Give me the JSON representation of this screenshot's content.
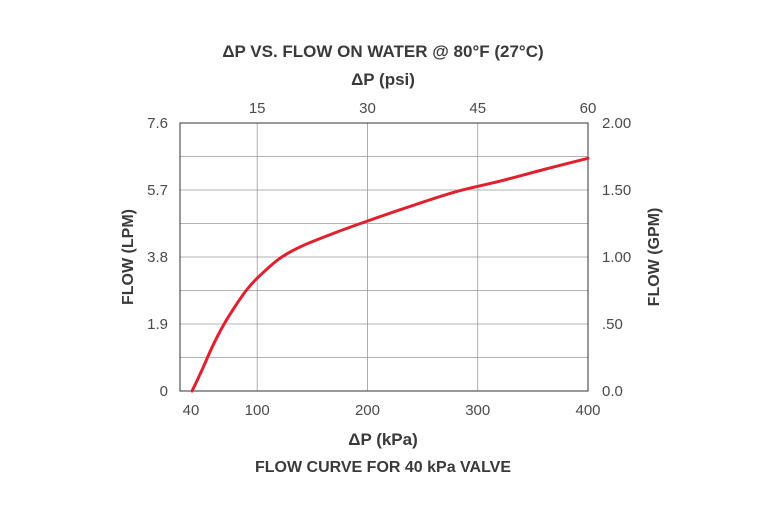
{
  "chart_data": {
    "type": "line",
    "title": "ΔP VS. FLOW ON WATER @ 80°F (27°C)",
    "top_xlabel": "ΔP (psi)",
    "xlabel": "ΔP (kPa)",
    "caption": "FLOW CURVE FOR 40 kPa VALVE",
    "ylabel_left": "FLOW (LPM)",
    "ylabel_right": "FLOW (GPM)",
    "xlim": [
      30,
      400
    ],
    "ylim": [
      0,
      7.6
    ],
    "x_ticks": [
      "40",
      "100",
      "200",
      "300",
      "400"
    ],
    "x_tick_values": [
      40,
      100,
      200,
      300,
      400
    ],
    "top_ticks": [
      "15",
      "30",
      "45",
      "60"
    ],
    "top_tick_values": [
      100,
      200,
      300,
      400
    ],
    "y_left_ticks": [
      "0",
      "1.9",
      "3.8",
      "5.7",
      "7.6"
    ],
    "y_left_tick_values": [
      0,
      1.9,
      3.8,
      5.7,
      7.6
    ],
    "y_right_ticks": [
      "0.0",
      ".50",
      "1.00",
      "1.50",
      "2.00"
    ],
    "y_right_tick_values": [
      0,
      1.9,
      3.8,
      5.7,
      7.6
    ],
    "grid_y_values": [
      0.95,
      1.9,
      2.85,
      3.8,
      4.75,
      5.7,
      6.65,
      7.6
    ],
    "grid_x_values": [
      100,
      200,
      300
    ],
    "grid": true,
    "series": [
      {
        "color": "#e0202e",
        "x": [
          41,
          50,
          60,
          70,
          80,
          90,
          100,
          120,
          140,
          170,
          200,
          240,
          280,
          320,
          360,
          400
        ],
        "values": [
          0.0,
          0.6,
          1.3,
          1.9,
          2.4,
          2.85,
          3.2,
          3.75,
          4.1,
          4.48,
          4.82,
          5.25,
          5.65,
          5.95,
          6.28,
          6.6
        ]
      }
    ]
  }
}
